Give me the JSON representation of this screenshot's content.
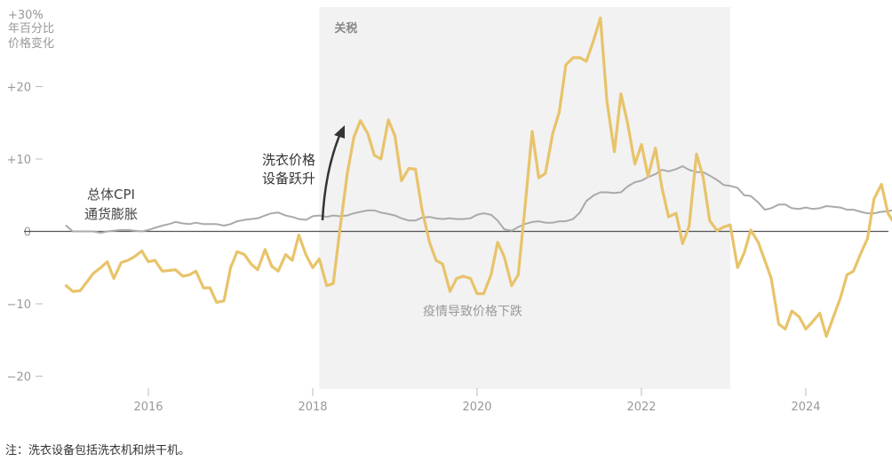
{
  "chart_data": {
    "type": "line",
    "y_unit_label": [
      "+30%",
      "年百分比",
      "价格变化"
    ],
    "y_ticks": [
      -20,
      -10,
      0,
      10,
      20,
      30
    ],
    "y_tick_labels": [
      "−20",
      "−10",
      "0",
      "+10",
      "+20",
      "+30%"
    ],
    "ylim": [
      -22,
      31
    ],
    "x_ticks": [
      2016,
      2018,
      2020,
      2022,
      2024
    ],
    "x_tick_labels": [
      "2016",
      "2018",
      "2020",
      "2022",
      "2024"
    ],
    "xlim": [
      2014.6,
      2025.25
    ],
    "shaded_region": {
      "label": "关税",
      "x_start": 2018.08,
      "x_end": 2023.08,
      "color": "#f2f2f2"
    },
    "annotations": {
      "cpi_label": [
        "总体CPI",
        "通货膨胀"
      ],
      "surge_label": [
        "洗衣价格",
        "设备跃升"
      ],
      "covid_label": "疫情导致价格下跌"
    },
    "series": [
      {
        "key": "cpi",
        "color": "#aaaaaa",
        "points": [
          [
            2015.0,
            0.8
          ],
          [
            2015.08,
            0.0
          ],
          [
            2015.17,
            0.0
          ],
          [
            2015.25,
            0.0
          ],
          [
            2015.33,
            0.0
          ],
          [
            2015.42,
            -0.2
          ],
          [
            2015.5,
            0.0
          ],
          [
            2015.58,
            0.1
          ],
          [
            2015.67,
            0.2
          ],
          [
            2015.75,
            0.2
          ],
          [
            2015.83,
            0.1
          ],
          [
            2015.92,
            0.0
          ],
          [
            2016.0,
            0.2
          ],
          [
            2016.08,
            0.5
          ],
          [
            2016.17,
            0.8
          ],
          [
            2016.25,
            1.0
          ],
          [
            2016.33,
            1.3
          ],
          [
            2016.42,
            1.1
          ],
          [
            2016.5,
            1.0
          ],
          [
            2016.58,
            1.2
          ],
          [
            2016.67,
            1.0
          ],
          [
            2016.75,
            1.0
          ],
          [
            2016.83,
            1.0
          ],
          [
            2016.92,
            0.8
          ],
          [
            2017.0,
            1.0
          ],
          [
            2017.08,
            1.4
          ],
          [
            2017.17,
            1.6
          ],
          [
            2017.25,
            1.7
          ],
          [
            2017.33,
            1.8
          ],
          [
            2017.42,
            2.2
          ],
          [
            2017.5,
            2.5
          ],
          [
            2017.58,
            2.6
          ],
          [
            2017.67,
            2.2
          ],
          [
            2017.75,
            2.0
          ],
          [
            2017.83,
            1.7
          ],
          [
            2017.92,
            1.6
          ],
          [
            2018.0,
            2.1
          ],
          [
            2018.08,
            2.2
          ],
          [
            2018.17,
            2.0
          ],
          [
            2018.25,
            2.2
          ],
          [
            2018.33,
            2.1
          ],
          [
            2018.42,
            2.2
          ],
          [
            2018.5,
            2.5
          ],
          [
            2018.58,
            2.7
          ],
          [
            2018.67,
            2.9
          ],
          [
            2018.75,
            2.9
          ],
          [
            2018.83,
            2.6
          ],
          [
            2018.92,
            2.4
          ],
          [
            2019.0,
            2.2
          ],
          [
            2019.08,
            1.8
          ],
          [
            2019.17,
            1.5
          ],
          [
            2019.25,
            1.5
          ],
          [
            2019.33,
            1.9
          ],
          [
            2019.42,
            2.0
          ],
          [
            2019.5,
            1.8
          ],
          [
            2019.58,
            1.7
          ],
          [
            2019.67,
            1.8
          ],
          [
            2019.75,
            1.7
          ],
          [
            2019.83,
            1.7
          ],
          [
            2019.92,
            1.8
          ],
          [
            2020.0,
            2.3
          ],
          [
            2020.08,
            2.5
          ],
          [
            2020.17,
            2.3
          ],
          [
            2020.25,
            1.5
          ],
          [
            2020.33,
            0.3
          ],
          [
            2020.42,
            0.1
          ],
          [
            2020.5,
            0.6
          ],
          [
            2020.58,
            1.0
          ],
          [
            2020.67,
            1.3
          ],
          [
            2020.75,
            1.4
          ],
          [
            2020.83,
            1.2
          ],
          [
            2020.92,
            1.2
          ],
          [
            2021.0,
            1.4
          ],
          [
            2021.08,
            1.4
          ],
          [
            2021.17,
            1.7
          ],
          [
            2021.25,
            2.6
          ],
          [
            2021.33,
            4.2
          ],
          [
            2021.42,
            5.0
          ],
          [
            2021.5,
            5.4
          ],
          [
            2021.58,
            5.4
          ],
          [
            2021.67,
            5.3
          ],
          [
            2021.75,
            5.4
          ],
          [
            2021.83,
            6.2
          ],
          [
            2021.92,
            6.8
          ],
          [
            2022.0,
            7.0
          ],
          [
            2022.08,
            7.5
          ],
          [
            2022.17,
            7.9
          ],
          [
            2022.25,
            8.5
          ],
          [
            2022.33,
            8.3
          ],
          [
            2022.42,
            8.6
          ],
          [
            2022.5,
            9.0
          ],
          [
            2022.58,
            8.5
          ],
          [
            2022.67,
            8.2
          ],
          [
            2022.75,
            8.2
          ],
          [
            2022.83,
            7.7
          ],
          [
            2022.92,
            7.1
          ],
          [
            2023.0,
            6.4
          ],
          [
            2023.08,
            6.3
          ],
          [
            2023.17,
            6.0
          ],
          [
            2023.25,
            5.0
          ],
          [
            2023.33,
            4.9
          ],
          [
            2023.42,
            4.0
          ],
          [
            2023.5,
            3.0
          ],
          [
            2023.58,
            3.2
          ],
          [
            2023.67,
            3.7
          ],
          [
            2023.75,
            3.7
          ],
          [
            2023.83,
            3.2
          ],
          [
            2023.92,
            3.1
          ],
          [
            2024.0,
            3.3
          ],
          [
            2024.08,
            3.1
          ],
          [
            2024.17,
            3.2
          ],
          [
            2024.25,
            3.5
          ],
          [
            2024.33,
            3.4
          ],
          [
            2024.42,
            3.3
          ],
          [
            2024.5,
            3.0
          ],
          [
            2024.58,
            3.0
          ],
          [
            2024.67,
            2.7
          ],
          [
            2024.75,
            2.5
          ],
          [
            2024.83,
            2.5
          ],
          [
            2024.92,
            2.7
          ],
          [
            2025.0,
            2.8
          ],
          [
            2025.08,
            3.0
          ],
          [
            2025.17,
            2.8
          ]
        ]
      },
      {
        "key": "laundry",
        "color": "#e8c36a",
        "points": [
          [
            2015.0,
            -7.5
          ],
          [
            2015.08,
            -8.3
          ],
          [
            2015.17,
            -8.2
          ],
          [
            2015.25,
            -7.0
          ],
          [
            2015.33,
            -5.8
          ],
          [
            2015.42,
            -5.0
          ],
          [
            2015.5,
            -4.2
          ],
          [
            2015.58,
            -6.5
          ],
          [
            2015.67,
            -4.3
          ],
          [
            2015.75,
            -4.0
          ],
          [
            2015.83,
            -3.5
          ],
          [
            2015.92,
            -2.7
          ],
          [
            2016.0,
            -4.2
          ],
          [
            2016.08,
            -4.0
          ],
          [
            2016.17,
            -5.5
          ],
          [
            2016.25,
            -5.4
          ],
          [
            2016.33,
            -5.3
          ],
          [
            2016.42,
            -6.2
          ],
          [
            2016.5,
            -6.0
          ],
          [
            2016.58,
            -5.5
          ],
          [
            2016.67,
            -7.8
          ],
          [
            2016.75,
            -7.8
          ],
          [
            2016.83,
            -9.8
          ],
          [
            2016.92,
            -9.6
          ],
          [
            2017.0,
            -5.0
          ],
          [
            2017.08,
            -2.8
          ],
          [
            2017.17,
            -3.2
          ],
          [
            2017.25,
            -4.5
          ],
          [
            2017.33,
            -5.3
          ],
          [
            2017.42,
            -2.5
          ],
          [
            2017.5,
            -4.8
          ],
          [
            2017.58,
            -5.5
          ],
          [
            2017.67,
            -3.2
          ],
          [
            2017.75,
            -4.0
          ],
          [
            2017.83,
            -0.5
          ],
          [
            2017.92,
            -3.3
          ],
          [
            2018.0,
            -5.0
          ],
          [
            2018.08,
            -3.8
          ],
          [
            2018.17,
            -7.5
          ],
          [
            2018.25,
            -7.2
          ],
          [
            2018.33,
            0.2
          ],
          [
            2018.42,
            8.0
          ],
          [
            2018.5,
            13.0
          ],
          [
            2018.58,
            15.3
          ],
          [
            2018.67,
            13.5
          ],
          [
            2018.75,
            10.5
          ],
          [
            2018.83,
            10.0
          ],
          [
            2018.92,
            15.4
          ],
          [
            2019.0,
            13.2
          ],
          [
            2019.08,
            7.0
          ],
          [
            2019.17,
            8.7
          ],
          [
            2019.25,
            8.6
          ],
          [
            2019.33,
            3.0
          ],
          [
            2019.42,
            -1.5
          ],
          [
            2019.5,
            -4.0
          ],
          [
            2019.58,
            -4.5
          ],
          [
            2019.67,
            -8.3
          ],
          [
            2019.75,
            -6.5
          ],
          [
            2019.83,
            -6.2
          ],
          [
            2019.92,
            -6.5
          ],
          [
            2020.0,
            -8.6
          ],
          [
            2020.08,
            -8.6
          ],
          [
            2020.17,
            -6.0
          ],
          [
            2020.25,
            -1.5
          ],
          [
            2020.33,
            -3.5
          ],
          [
            2020.42,
            -7.5
          ],
          [
            2020.5,
            -6.0
          ],
          [
            2020.58,
            3.0
          ],
          [
            2020.67,
            13.8
          ],
          [
            2020.75,
            7.4
          ],
          [
            2020.83,
            8.0
          ],
          [
            2020.92,
            13.5
          ],
          [
            2021.0,
            16.5
          ],
          [
            2021.08,
            23.0
          ],
          [
            2021.17,
            24.0
          ],
          [
            2021.25,
            24.0
          ],
          [
            2021.33,
            23.5
          ],
          [
            2021.42,
            26.5
          ],
          [
            2021.5,
            29.5
          ],
          [
            2021.58,
            18.0
          ],
          [
            2021.67,
            11.0
          ],
          [
            2021.75,
            19.0
          ],
          [
            2021.83,
            15.0
          ],
          [
            2021.92,
            9.3
          ],
          [
            2022.0,
            12.0
          ],
          [
            2022.08,
            7.6
          ],
          [
            2022.17,
            11.5
          ],
          [
            2022.25,
            6.0
          ],
          [
            2022.33,
            2.0
          ],
          [
            2022.42,
            2.5
          ],
          [
            2022.5,
            -1.7
          ],
          [
            2022.58,
            0.7
          ],
          [
            2022.67,
            10.7
          ],
          [
            2022.75,
            7.5
          ],
          [
            2022.83,
            1.5
          ],
          [
            2022.92,
            0.1
          ],
          [
            2023.0,
            0.6
          ],
          [
            2023.08,
            0.9
          ],
          [
            2023.17,
            -5.0
          ],
          [
            2023.25,
            -3.0
          ],
          [
            2023.33,
            0.2
          ],
          [
            2023.42,
            -1.5
          ],
          [
            2023.5,
            -4.0
          ],
          [
            2023.58,
            -6.5
          ],
          [
            2023.67,
            -12.8
          ],
          [
            2023.75,
            -13.5
          ],
          [
            2023.83,
            -11.0
          ],
          [
            2023.92,
            -11.8
          ],
          [
            2024.0,
            -13.5
          ],
          [
            2024.08,
            -12.5
          ],
          [
            2024.17,
            -11.3
          ],
          [
            2024.25,
            -14.5
          ],
          [
            2024.33,
            -12.0
          ],
          [
            2024.42,
            -9.2
          ],
          [
            2024.5,
            -6.0
          ],
          [
            2024.58,
            -5.5
          ],
          [
            2024.67,
            -3.0
          ],
          [
            2024.75,
            -1.0
          ],
          [
            2024.83,
            4.5
          ],
          [
            2024.92,
            6.5
          ],
          [
            2025.0,
            2.5
          ],
          [
            2025.08,
            1.0
          ],
          [
            2025.17,
            6.5
          ]
        ]
      }
    ]
  },
  "footnote": "注：洗衣设备包括洗衣机和烘干机。"
}
